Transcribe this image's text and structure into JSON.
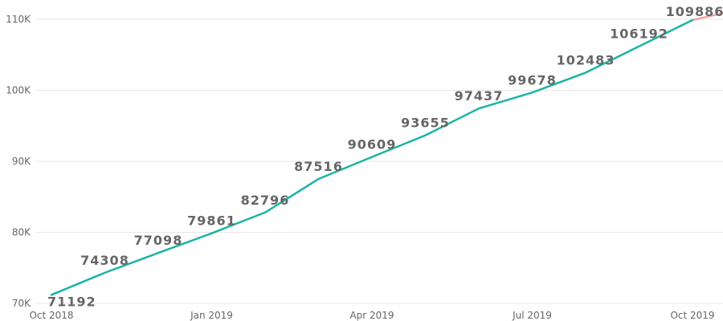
{
  "chart_data": {
    "type": "line",
    "title": "",
    "xlabel": "",
    "ylabel": "",
    "x": [
      "2018-10",
      "2018-11",
      "2018-12",
      "2019-01",
      "2019-02",
      "2019-03",
      "2019-04",
      "2019-05",
      "2019-06",
      "2019-07",
      "2019-08",
      "2019-09",
      "2019-10"
    ],
    "values": [
      71192,
      74308,
      77098,
      79861,
      82796,
      87516,
      90609,
      93655,
      97437,
      99678,
      102483,
      106192,
      109886
    ],
    "data_labels": [
      "71192",
      "74308",
      "77098",
      "79861",
      "82796",
      "87516",
      "90609",
      "93655",
      "97437",
      "99678",
      "102483",
      "106192",
      "109886"
    ],
    "trend_extension": {
      "to_x": "2019-10-30",
      "to_value": 111500
    },
    "ylim": [
      70000,
      111500
    ],
    "grid": true,
    "y_ticks": [
      {
        "value": 70000,
        "label": "70K"
      },
      {
        "value": 80000,
        "label": "80K"
      },
      {
        "value": 90000,
        "label": "90K"
      },
      {
        "value": 100000,
        "label": "100K"
      },
      {
        "value": 110000,
        "label": "110K"
      }
    ],
    "x_ticks": [
      {
        "x": "2018-10",
        "label": "Oct 2018"
      },
      {
        "x": "2019-01",
        "label": "Jan 2019"
      },
      {
        "x": "2019-04",
        "label": "Apr 2019"
      },
      {
        "x": "2019-07",
        "label": "Jul 2019"
      },
      {
        "x": "2019-10",
        "label": "Oct 2019"
      }
    ],
    "colors": {
      "line": "#1ab4a4",
      "trend": "#f2a6a6"
    }
  }
}
